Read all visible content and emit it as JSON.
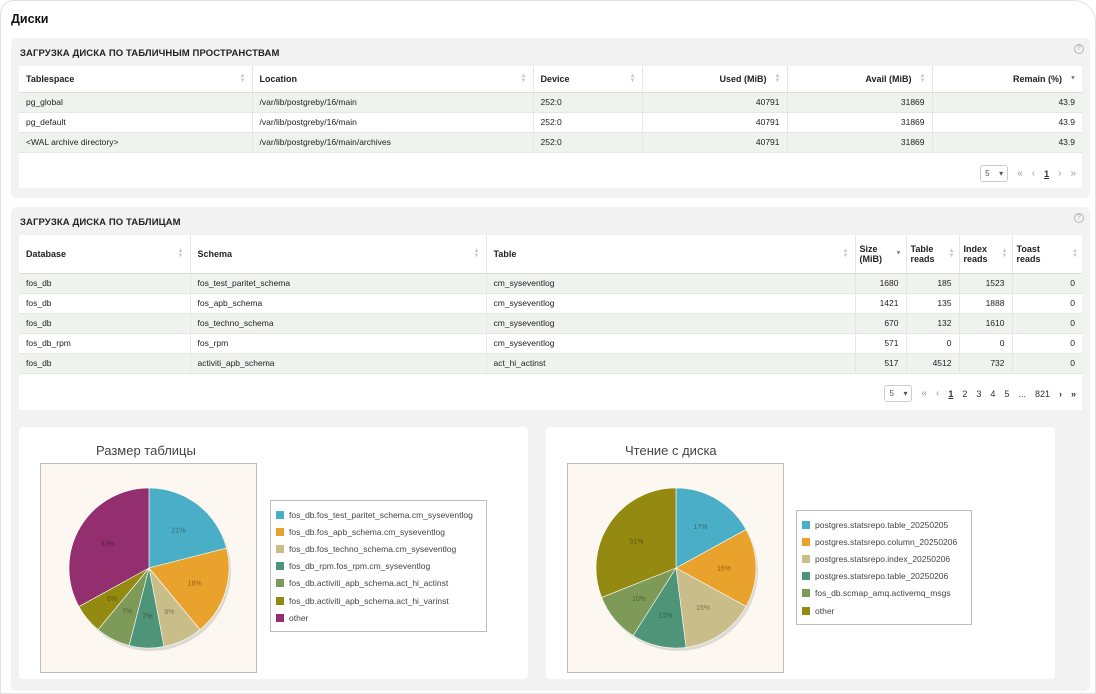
{
  "page_title": "Диски",
  "tablespace_panel": {
    "title": "ЗАГРУЗКА ДИСКА ПО ТАБЛИЧНЫМ ПРОСТРАНСТВАМ",
    "help": "?",
    "columns": [
      "Tablespace",
      "Location",
      "Device",
      "Used (MiB)",
      "Avail (MiB)",
      "Remain (%)"
    ],
    "rows": [
      [
        "pg_global",
        "/var/lib/postgreby/16/main",
        "252:0",
        "40791",
        "31869",
        "43.9"
      ],
      [
        "pg_default",
        "/var/lib/postgreby/16/main",
        "252:0",
        "40791",
        "31869",
        "43.9"
      ],
      [
        "<WAL archive directory>",
        "/var/lib/postgreby/16/main/archives",
        "252:0",
        "40791",
        "31869",
        "43.9"
      ]
    ],
    "pager": {
      "page_size": "5",
      "first": "«",
      "prev": "‹",
      "pages": [
        "1"
      ],
      "next": "›",
      "last": "»"
    }
  },
  "tables_panel": {
    "title": "ЗАГРУЗКА ДИСКА ПО ТАБЛИЦАМ",
    "help": "?",
    "columns": [
      {
        "l1": "Database",
        "l2": ""
      },
      {
        "l1": "Schema",
        "l2": ""
      },
      {
        "l1": "Table",
        "l2": ""
      },
      {
        "l1": "Size",
        "l2": "(MiB)"
      },
      {
        "l1": "Table",
        "l2": "reads"
      },
      {
        "l1": "Index",
        "l2": "reads"
      },
      {
        "l1": "Toast",
        "l2": "reads"
      }
    ],
    "rows": [
      [
        "fos_db",
        "fos_test_paritet_schema",
        "cm_syseventlog",
        "1680",
        "185",
        "1523",
        "0"
      ],
      [
        "fos_db",
        "fos_apb_schema",
        "cm_syseventlog",
        "1421",
        "135",
        "1888",
        "0"
      ],
      [
        "fos_db",
        "fos_techno_schema",
        "cm_syseventlog",
        "670",
        "132",
        "1610",
        "0"
      ],
      [
        "fos_db_rpm",
        "fos_rpm",
        "cm_syseventlog",
        "571",
        "0",
        "0",
        "0"
      ],
      [
        "fos_db",
        "activiti_apb_schema",
        "act_hi_actinst",
        "517",
        "4512",
        "732",
        "0"
      ]
    ],
    "pager": {
      "page_size": "5",
      "first": "«",
      "prev": "‹",
      "pages": [
        "1",
        "2",
        "3",
        "4",
        "5",
        "...",
        "821"
      ],
      "next": "›",
      "last": "»"
    }
  },
  "chart_data": [
    {
      "type": "pie",
      "title": "Размер таблицы",
      "legend": "right",
      "slices": [
        {
          "label": "fos_db.fos_test_paritet_schema.cm_syseventlog",
          "value": 21,
          "color": "#4aafc6"
        },
        {
          "label": "fos_db.fos_apb_schema.cm_syseventlog",
          "value": 18,
          "color": "#e9a22b"
        },
        {
          "label": "fos_db.fos_techno_schema.cm_syseventlog",
          "value": 8,
          "color": "#c9bd8a"
        },
        {
          "label": "fos_db_rpm.fos_rpm.cm_syseventlog",
          "value": 7,
          "color": "#4e9478"
        },
        {
          "label": "fos_db.activiti_apb_schema.act_hi_actinst",
          "value": 7,
          "color": "#7e9a58"
        },
        {
          "label": "fos_db.activiti_apb_schema.act_hi_varinst",
          "value": 6,
          "color": "#948a12"
        },
        {
          "label": "other",
          "value": 33,
          "color": "#932f6e"
        }
      ],
      "slice_labels": [
        "21%",
        "18%",
        "8%",
        "7%",
        "7%",
        "6%",
        "33%"
      ]
    },
    {
      "type": "pie",
      "title": "Чтение с диска",
      "legend": "right",
      "slices": [
        {
          "label": "postgres.statsrepo.table_20250205",
          "value": 17,
          "color": "#4aafc6"
        },
        {
          "label": "postgres.statsrepo.column_20250206",
          "value": 16,
          "color": "#e9a22b"
        },
        {
          "label": "postgres.statsrepo.index_20250206",
          "value": 15,
          "color": "#c9bd8a"
        },
        {
          "label": "postgres.statsrepo.table_20250206",
          "value": 11,
          "color": "#4e9478"
        },
        {
          "label": "fos_db.scmap_amq.activemq_msgs",
          "value": 10,
          "color": "#7e9a58"
        },
        {
          "label": "other",
          "value": 31,
          "color": "#948a12"
        }
      ],
      "slice_labels": [
        "17%",
        "16%",
        "15%",
        "11%",
        "10%",
        "31%"
      ]
    }
  ]
}
